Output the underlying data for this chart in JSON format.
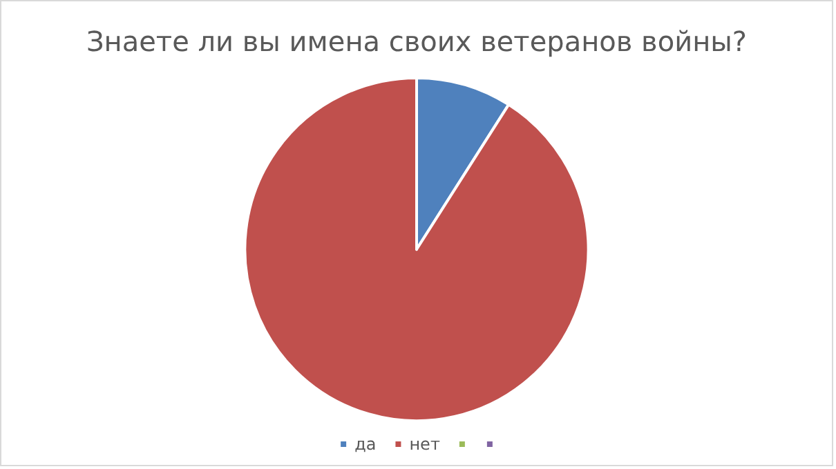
{
  "chart_data": {
    "type": "pie",
    "title": "Знаете ли вы имена своих ветеранов войны?",
    "categories": [
      "да",
      "нет",
      null,
      null
    ],
    "values": [
      9,
      91,
      0,
      0
    ],
    "colors": [
      "#4f81bd",
      "#c0504d",
      "#9bbb59",
      "#8064a2"
    ],
    "legend": "bottom"
  }
}
